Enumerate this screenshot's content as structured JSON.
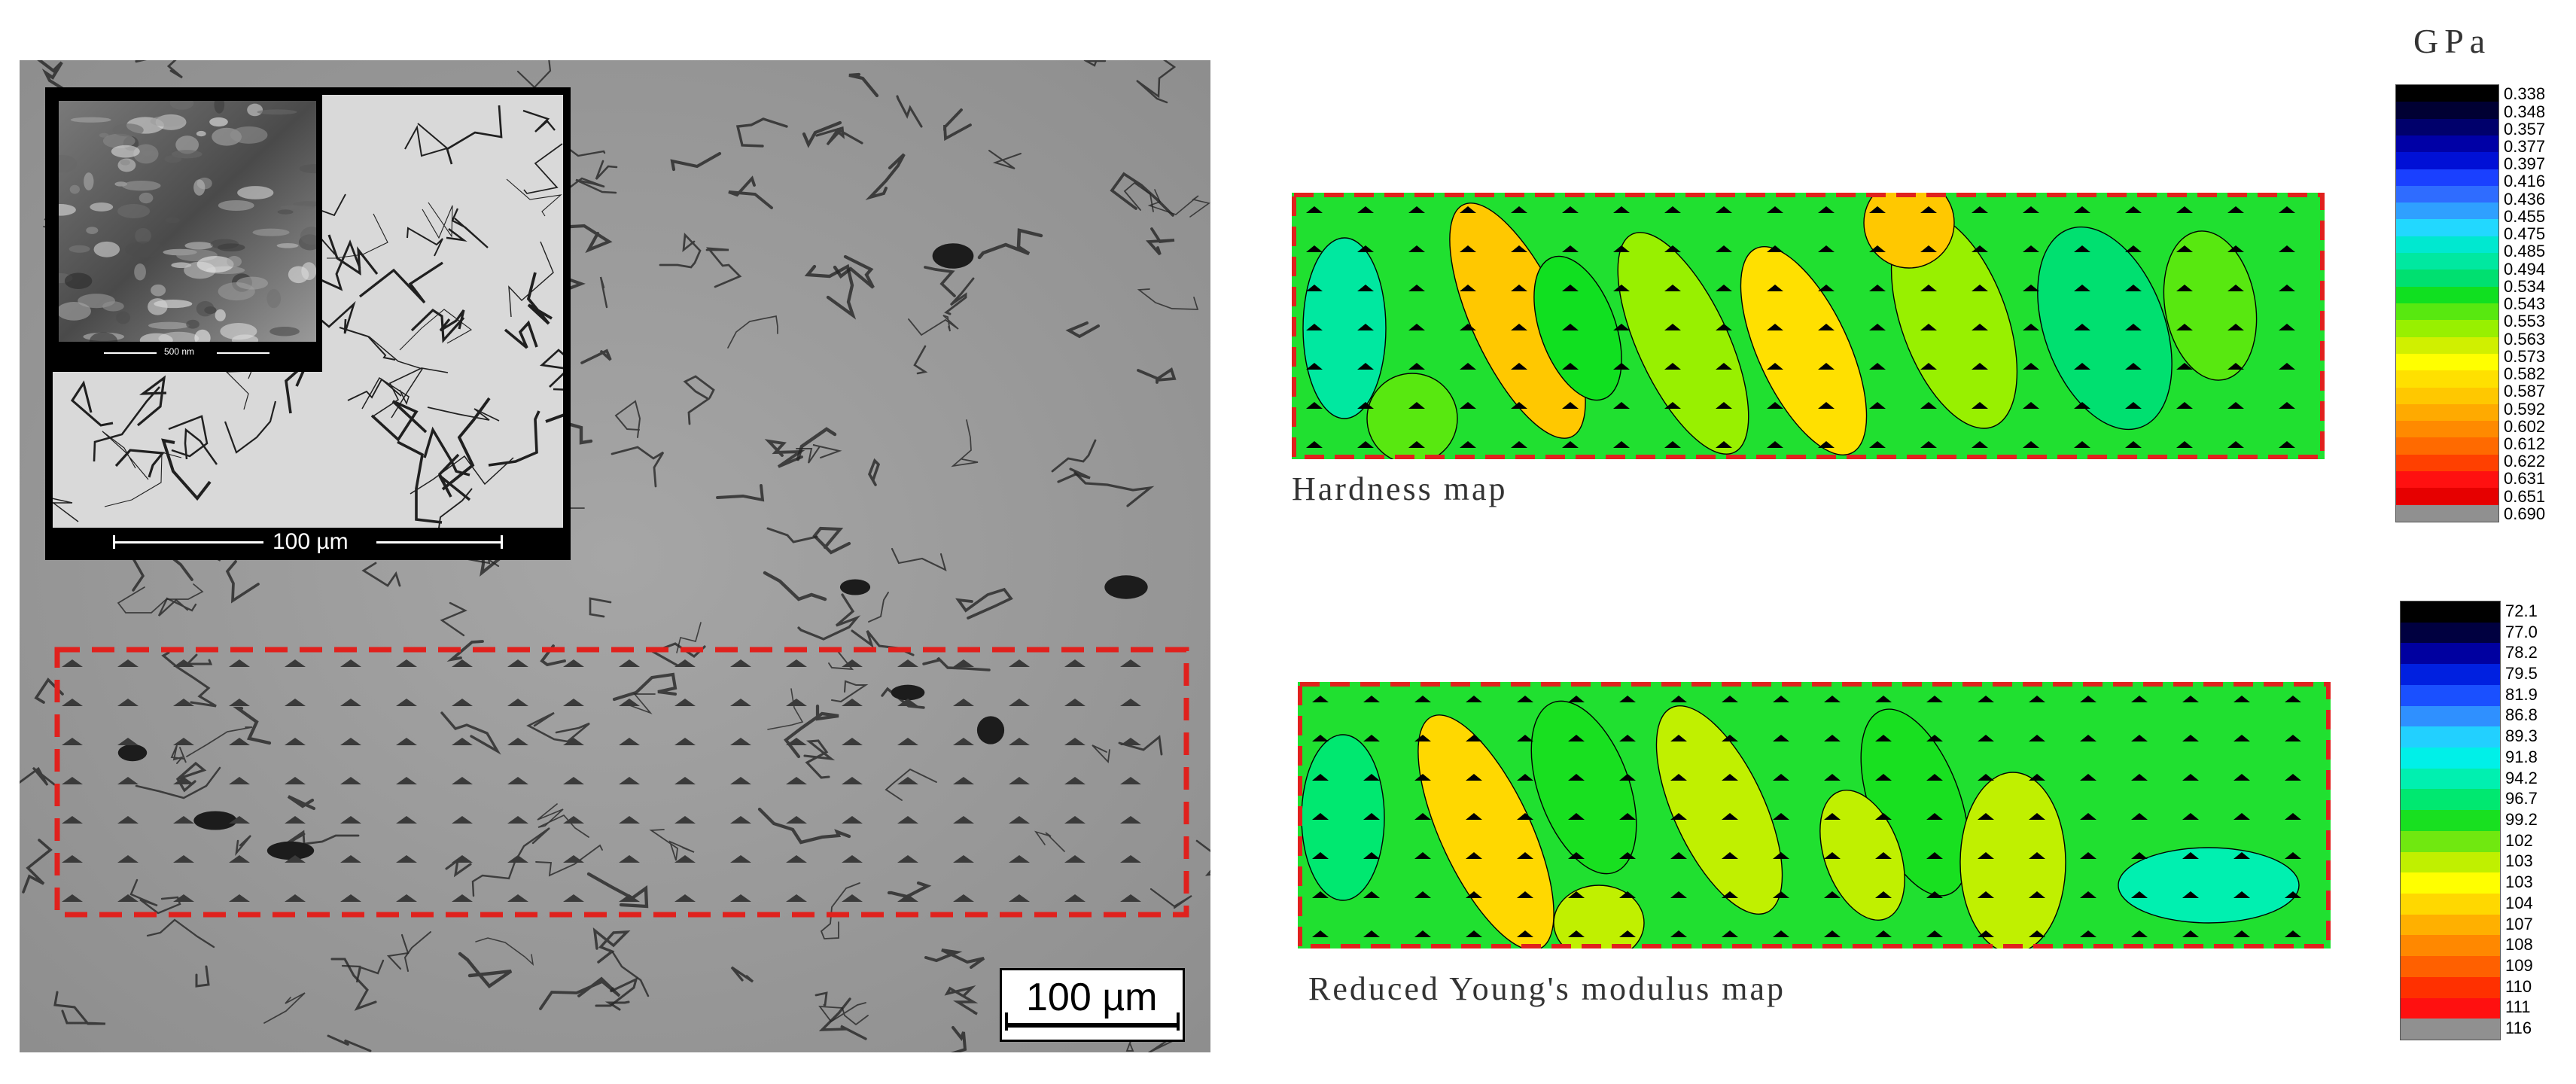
{
  "micrograph": {
    "scale_label": "100 µm",
    "inset": {
      "scale_label": "100 µm"
    },
    "sem_inset": {
      "scale_label": "500 nm"
    }
  },
  "hardness_map": {
    "label": "Hardness map",
    "unit": "GPa",
    "colorbar": {
      "values": [
        "0.338",
        "0.348",
        "0.357",
        "0.377",
        "0.397",
        "0.416",
        "0.436",
        "0.455",
        "0.475",
        "0.485",
        "0.494",
        "0.534",
        "0.543",
        "0.553",
        "0.563",
        "0.573",
        "0.582",
        "0.587",
        "0.592",
        "0.602",
        "0.612",
        "0.622",
        "0.631",
        "0.651",
        "0.690"
      ],
      "colors": [
        "#000000",
        "#000033",
        "#00006b",
        "#0000a6",
        "#0010d6",
        "#1a40ff",
        "#2f6cff",
        "#2fa0ff",
        "#22d8ff",
        "#00e8d0",
        "#00e8a0",
        "#00e070",
        "#10e020",
        "#58e810",
        "#98f000",
        "#d0f000",
        "#ffff00",
        "#ffe000",
        "#ffc800",
        "#ffaa00",
        "#ff8a00",
        "#ff6a00",
        "#ff4000",
        "#ff1010",
        "#e60000",
        "#909090"
      ]
    }
  },
  "modulus_map": {
    "label": "Reduced Young's modulus map",
    "colorbar": {
      "values": [
        "72.1",
        "77.0",
        "78.2",
        "79.5",
        "81.9",
        "86.8",
        "89.3",
        "91.8",
        "94.2",
        "96.7",
        "99.2",
        "102",
        "103",
        "103",
        "104",
        "107",
        "108",
        "109",
        "110",
        "111",
        "116"
      ],
      "colors": [
        "#000000",
        "#000040",
        "#0000a0",
        "#0020e0",
        "#1a50ff",
        "#2f90ff",
        "#22d0ff",
        "#00f0e8",
        "#00f0b0",
        "#00e870",
        "#18e020",
        "#70e810",
        "#c0f000",
        "#ffff00",
        "#ffd800",
        "#ffb000",
        "#ff8800",
        "#ff6000",
        "#ff3000",
        "#ff1010",
        "#909090"
      ]
    }
  }
}
